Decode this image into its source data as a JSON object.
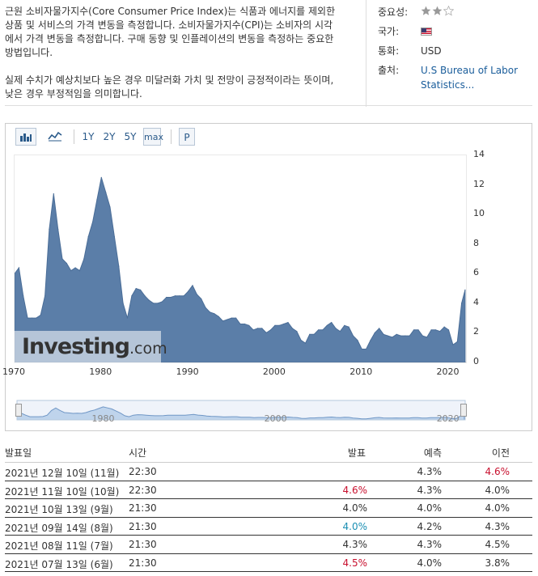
{
  "description": {
    "p1": "근원 소비자물가지수(Core Consumer Price Index)는 식품과 에너지를 제외한 상품 및 서비스의 가격 변동을 측정합니다. 소비자물가지수(CPI)는 소비자의 시각에서 가격 변동을 측정합니다. 구매 동향 및 인플레이션의 변동을 측정하는 중요한 방법입니다.",
    "p2": "실제 수치가 예상치보다 높은 경우 미달러화 가치 및 전망이 긍정적이라는 뜻이며, 낮은 경우 부정적임을 의미합니다."
  },
  "info": {
    "importance_label": "중요성:",
    "importance_stars": 2,
    "importance_max": 3,
    "country_label": "국가:",
    "country_flag": "us-flag-icon",
    "currency_label": "통화:",
    "currency_value": "USD",
    "source_label": "출처:",
    "source_value": "U.S Bureau of Labor Statistics..."
  },
  "toolbar": {
    "bar_icon": "bar-chart-icon",
    "line_icon": "line-chart-icon",
    "ranges": [
      "1Y",
      "2Y",
      "5Y",
      "max"
    ],
    "p_label": "P"
  },
  "colors": {
    "fill": "#5b7ea8",
    "stroke": "#4a6d97",
    "red": "#c8102e",
    "blue": "#1a8fb3"
  },
  "chart_data": {
    "type": "area",
    "title": "",
    "xlabel": "",
    "ylabel": "",
    "x_ticks": [
      "1970",
      "1980",
      "1990",
      "2000",
      "2010",
      "2020"
    ],
    "y_ticks": [
      "0",
      "2",
      "4",
      "6",
      "8",
      "10",
      "12",
      "14"
    ],
    "xlim": [
      1970,
      2022
    ],
    "ylim": [
      0,
      14
    ],
    "navigator_ticks": [
      "1980",
      "2000",
      "2020"
    ],
    "x": [
      1970,
      1970.5,
      1971,
      1971.5,
      1972,
      1972.5,
      1973,
      1973.5,
      1974,
      1974.5,
      1975,
      1975.5,
      1976,
      1976.5,
      1977,
      1977.5,
      1978,
      1978.5,
      1979,
      1979.5,
      1980,
      1980.5,
      1981,
      1981.5,
      1982,
      1982.5,
      1983,
      1983.5,
      1984,
      1984.5,
      1985,
      1985.5,
      1986,
      1986.5,
      1987,
      1987.5,
      1988,
      1988.5,
      1989,
      1989.5,
      1990,
      1990.5,
      1991,
      1991.5,
      1992,
      1992.5,
      1993,
      1993.5,
      1994,
      1994.5,
      1995,
      1995.5,
      1996,
      1996.5,
      1997,
      1997.5,
      1998,
      1998.5,
      1999,
      1999.5,
      2000,
      2000.5,
      2001,
      2001.5,
      2002,
      2002.5,
      2003,
      2003.5,
      2004,
      2004.5,
      2005,
      2005.5,
      2006,
      2006.5,
      2007,
      2007.5,
      2008,
      2008.5,
      2009,
      2009.5,
      2010,
      2010.5,
      2011,
      2011.5,
      2012,
      2012.5,
      2013,
      2013.5,
      2014,
      2014.5,
      2015,
      2015.5,
      2016,
      2016.5,
      2017,
      2017.5,
      2018,
      2018.5,
      2019,
      2019.5,
      2020,
      2020.5,
      2021,
      2021.5,
      2021.9
    ],
    "values": [
      6.0,
      6.4,
      4.5,
      3.0,
      3.0,
      3.0,
      3.2,
      4.5,
      9.0,
      11.4,
      9.0,
      7.0,
      6.7,
      6.2,
      6.4,
      6.2,
      7.0,
      8.5,
      9.5,
      11.0,
      12.5,
      11.5,
      10.5,
      8.5,
      6.5,
      4.0,
      3.0,
      4.5,
      5.0,
      4.9,
      4.5,
      4.2,
      4.0,
      4.0,
      4.1,
      4.4,
      4.4,
      4.5,
      4.5,
      4.5,
      4.8,
      5.2,
      4.6,
      4.3,
      3.7,
      3.4,
      3.3,
      3.1,
      2.8,
      2.9,
      3.0,
      3.0,
      2.6,
      2.6,
      2.5,
      2.2,
      2.3,
      2.3,
      2.0,
      2.2,
      2.5,
      2.5,
      2.6,
      2.7,
      2.3,
      2.1,
      1.5,
      1.3,
      1.9,
      1.9,
      2.2,
      2.2,
      2.5,
      2.7,
      2.3,
      2.1,
      2.5,
      2.4,
      1.8,
      1.5,
      0.9,
      0.9,
      1.5,
      2.0,
      2.3,
      1.9,
      1.8,
      1.7,
      1.9,
      1.8,
      1.8,
      1.8,
      2.2,
      2.2,
      1.8,
      1.7,
      2.2,
      2.2,
      2.1,
      2.4,
      2.2,
      1.2,
      1.4,
      4.0,
      4.9
    ]
  },
  "table": {
    "headers": {
      "date": "발표일",
      "time": "시간",
      "actual": "발표",
      "forecast": "예측",
      "previous": "이전"
    },
    "rows": [
      {
        "date": "2021년 12월 10일 (11월)",
        "time": "22:30",
        "actual": "",
        "actual_color": "",
        "forecast": "4.3%",
        "previous": "4.6%",
        "previous_color": "red"
      },
      {
        "date": "2021년 11월 10일 (10월)",
        "time": "22:30",
        "actual": "4.6%",
        "actual_color": "red",
        "forecast": "4.3%",
        "previous": "4.0%",
        "previous_color": ""
      },
      {
        "date": "2021년 10월 13일 (9월)",
        "time": "21:30",
        "actual": "4.0%",
        "actual_color": "",
        "forecast": "4.0%",
        "previous": "4.0%",
        "previous_color": ""
      },
      {
        "date": "2021년 09월 14일 (8월)",
        "time": "21:30",
        "actual": "4.0%",
        "actual_color": "blue",
        "forecast": "4.2%",
        "previous": "4.3%",
        "previous_color": ""
      },
      {
        "date": "2021년 08월 11일 (7월)",
        "time": "21:30",
        "actual": "4.3%",
        "actual_color": "",
        "forecast": "4.3%",
        "previous": "4.5%",
        "previous_color": ""
      },
      {
        "date": "2021년 07월 13일 (6월)",
        "time": "21:30",
        "actual": "4.5%",
        "actual_color": "red",
        "forecast": "4.0%",
        "previous": "3.8%",
        "previous_color": ""
      }
    ]
  },
  "watermark": {
    "brand": "Investing",
    "suffix": ".com"
  }
}
